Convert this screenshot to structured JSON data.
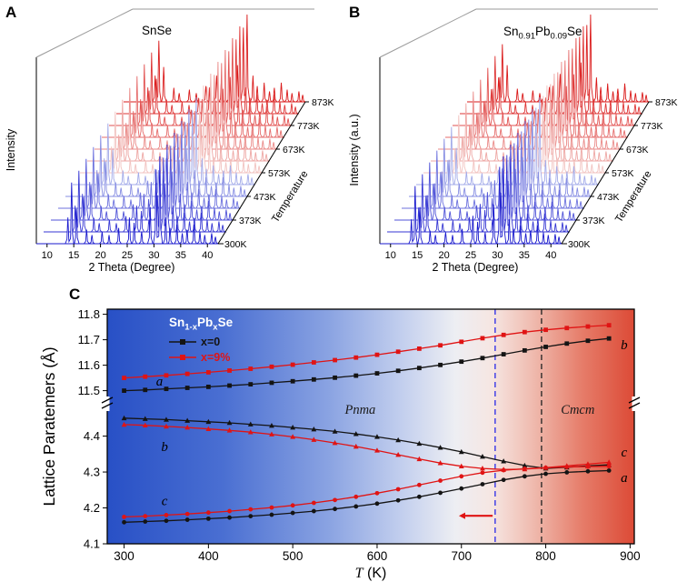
{
  "panel_letters": {
    "a": "A",
    "b": "B",
    "c": "C"
  },
  "chart_data": [
    {
      "id": "panel_A",
      "type": "line",
      "subtype": "waterfall_xrd",
      "title": "SnSe",
      "xlabel": "2 Theta (Degree)",
      "ylabel": "Intensity",
      "depth_label": "Temperature",
      "x_range": [
        8,
        42
      ],
      "x_ticks": [
        10,
        15,
        20,
        25,
        30,
        35,
        40
      ],
      "temperatures_K": [
        300,
        323,
        373,
        423,
        473,
        523,
        573,
        623,
        673,
        723,
        773,
        823,
        873
      ],
      "temp_tick_labels": [
        "300K",
        "373K",
        "473K",
        "573K",
        "673K",
        "773K",
        "873K"
      ],
      "temp_tick_indices": [
        0,
        2,
        4,
        6,
        8,
        10,
        12
      ],
      "color_stops": [
        "#1919cd",
        "#bec8ee",
        "#f2c3c0",
        "#da1919"
      ],
      "peaks_two_theta_intensity": [
        [
          13.9,
          0.3
        ],
        [
          14.6,
          0.7
        ],
        [
          15.5,
          0.4
        ],
        [
          17.4,
          0.16
        ],
        [
          18.4,
          0.1
        ],
        [
          20.3,
          0.14
        ],
        [
          21.6,
          0.1
        ],
        [
          23.4,
          0.18
        ],
        [
          25.4,
          0.3
        ],
        [
          26.3,
          0.24
        ],
        [
          27.7,
          0.14
        ],
        [
          29.3,
          0.42
        ],
        [
          30.4,
          0.85
        ],
        [
          31.1,
          1.0
        ],
        [
          32.2,
          0.3
        ],
        [
          33.0,
          0.18
        ],
        [
          34.3,
          0.22
        ],
        [
          35.3,
          0.12
        ],
        [
          36.2,
          0.16
        ],
        [
          37.5,
          0.22
        ],
        [
          38.6,
          0.14
        ],
        [
          39.5,
          0.1
        ],
        [
          40.8,
          0.12
        ],
        [
          41.5,
          0.08
        ]
      ]
    },
    {
      "id": "panel_B",
      "type": "line",
      "subtype": "waterfall_xrd",
      "title": "Sn0.91Pb0.09Se",
      "title_parts": [
        "Sn",
        "0.91",
        "Pb",
        "0.09",
        "Se"
      ],
      "xlabel": "2 Theta (Degree)",
      "ylabel": "Intensity (a.u.)",
      "depth_label": "Temperature",
      "x_range": [
        8,
        42
      ],
      "x_ticks": [
        10,
        15,
        20,
        25,
        30,
        35,
        40
      ],
      "temperatures_K": [
        300,
        323,
        373,
        423,
        473,
        523,
        573,
        623,
        673,
        723,
        773,
        823,
        873
      ],
      "temp_tick_labels": [
        "300K",
        "373K",
        "473K",
        "573K",
        "673K",
        "773K",
        "873K"
      ],
      "temp_tick_indices": [
        0,
        2,
        4,
        6,
        8,
        10,
        12
      ],
      "color_stops": [
        "#1919cd",
        "#bec8ee",
        "#f2c3c0",
        "#da1919"
      ],
      "peaks_two_theta_intensity": [
        [
          13.9,
          0.28
        ],
        [
          14.6,
          0.66
        ],
        [
          15.5,
          0.42
        ],
        [
          17.4,
          0.15
        ],
        [
          18.4,
          0.1
        ],
        [
          20.3,
          0.13
        ],
        [
          21.6,
          0.1
        ],
        [
          23.4,
          0.17
        ],
        [
          25.4,
          0.32
        ],
        [
          26.3,
          0.25
        ],
        [
          27.7,
          0.13
        ],
        [
          29.3,
          0.45
        ],
        [
          30.4,
          0.88
        ],
        [
          31.1,
          1.0
        ],
        [
          32.2,
          0.28
        ],
        [
          33.0,
          0.17
        ],
        [
          34.3,
          0.21
        ],
        [
          35.3,
          0.12
        ],
        [
          36.2,
          0.15
        ],
        [
          37.5,
          0.21
        ],
        [
          38.6,
          0.13
        ],
        [
          39.5,
          0.1
        ],
        [
          40.8,
          0.11
        ],
        [
          41.5,
          0.08
        ]
      ]
    },
    {
      "id": "panel_C",
      "type": "line",
      "xlabel": "T (K)",
      "xlabel_parts": {
        "italic": "T",
        "rest": " (K)"
      },
      "ylabel": "Lattice Paratemers (Å)",
      "x_range": [
        280,
        905
      ],
      "x_ticks": [
        300,
        400,
        500,
        600,
        700,
        800,
        900
      ],
      "y_axis_break": {
        "lower_range": [
          4.1,
          4.48
        ],
        "upper_range": [
          11.47,
          11.82
        ],
        "lower_ticks": [
          4.1,
          4.2,
          4.3,
          4.4
        ],
        "upper_ticks": [
          11.5,
          11.6,
          11.7,
          11.8
        ]
      },
      "temperatures_K": [
        300,
        325,
        350,
        375,
        400,
        425,
        450,
        475,
        500,
        525,
        550,
        575,
        600,
        625,
        650,
        675,
        700,
        725,
        750,
        775,
        800,
        825,
        850,
        875
      ],
      "series": [
        {
          "name": "a-axis x=0",
          "segment": "upper",
          "color": "#141414",
          "marker": "square",
          "values": [
            11.5,
            11.503,
            11.507,
            11.511,
            11.515,
            11.52,
            11.525,
            11.531,
            11.537,
            11.544,
            11.551,
            11.559,
            11.568,
            11.578,
            11.589,
            11.601,
            11.614,
            11.628,
            11.643,
            11.658,
            11.672,
            11.685,
            11.696,
            11.705
          ]
        },
        {
          "name": "a-axis x=9%",
          "segment": "upper",
          "color": "#e01414",
          "marker": "square",
          "values": [
            11.55,
            11.555,
            11.56,
            11.566,
            11.572,
            11.579,
            11.586,
            11.594,
            11.602,
            11.611,
            11.62,
            11.63,
            11.641,
            11.653,
            11.665,
            11.678,
            11.692,
            11.706,
            11.719,
            11.73,
            11.739,
            11.746,
            11.752,
            11.757
          ]
        },
        {
          "name": "b-axis x=0",
          "segment": "lower",
          "color": "#141414",
          "marker": "triangle",
          "values": [
            4.45,
            4.448,
            4.446,
            4.443,
            4.44,
            4.437,
            4.433,
            4.429,
            4.424,
            4.419,
            4.413,
            4.406,
            4.398,
            4.389,
            4.379,
            4.368,
            4.356,
            4.343,
            4.33,
            4.318,
            4.31,
            4.313,
            4.317,
            4.32
          ]
        },
        {
          "name": "b-axis x=9%",
          "segment": "lower",
          "color": "#e01414",
          "marker": "triangle",
          "values": [
            4.432,
            4.43,
            4.427,
            4.424,
            4.42,
            4.416,
            4.411,
            4.405,
            4.398,
            4.39,
            4.381,
            4.371,
            4.36,
            4.348,
            4.336,
            4.325,
            4.316,
            4.31,
            4.307,
            4.308,
            4.312,
            4.317,
            4.322,
            4.327
          ]
        },
        {
          "name": "c-axis x=0",
          "segment": "lower",
          "color": "#141414",
          "marker": "circle",
          "values": [
            4.16,
            4.162,
            4.164,
            4.167,
            4.17,
            4.173,
            4.177,
            4.181,
            4.186,
            4.191,
            4.197,
            4.204,
            4.212,
            4.221,
            4.231,
            4.242,
            4.254,
            4.266,
            4.278,
            4.288,
            4.295,
            4.299,
            4.302,
            4.304
          ]
        },
        {
          "name": "c-axis x=9%",
          "segment": "lower",
          "color": "#e01414",
          "marker": "circle",
          "values": [
            4.175,
            4.177,
            4.18,
            4.183,
            4.187,
            4.191,
            4.196,
            4.201,
            4.207,
            4.214,
            4.222,
            4.231,
            4.241,
            4.252,
            4.264,
            4.276,
            4.288,
            4.298,
            4.305,
            4.309,
            4.312,
            4.314,
            4.315,
            4.316
          ]
        }
      ],
      "legend": {
        "title_parts": [
          "Sn",
          "1-x",
          "Pb",
          "x",
          "Se"
        ],
        "entries": [
          {
            "label": "x=0",
            "color": "#141414"
          },
          {
            "label": "x=9%",
            "color": "#e01414"
          }
        ]
      },
      "phase_labels": [
        {
          "text": "Pnma",
          "T": 580,
          "value": 4.462
        },
        {
          "text": "Cmcm",
          "T": 838,
          "value": 4.462
        }
      ],
      "curve_labels": [
        {
          "text": "a",
          "T": 342,
          "value": 11.535,
          "segment": "upper"
        },
        {
          "text": "b",
          "T": 348,
          "value": 4.368,
          "segment": "lower"
        },
        {
          "text": "c",
          "T": 348,
          "value": 4.218,
          "segment": "lower"
        },
        {
          "text": "b",
          "T": 893,
          "value": 11.677,
          "segment": "upper"
        },
        {
          "text": "c",
          "T": 893,
          "value": 4.353,
          "segment": "lower"
        },
        {
          "text": "a",
          "T": 893,
          "value": 4.282,
          "segment": "lower"
        }
      ],
      "dashed_lines": [
        {
          "T": 740,
          "color": "#2828e8",
          "name": "transition-line-x9"
        },
        {
          "T": 795,
          "color": "#202020",
          "name": "transition-line-x0"
        }
      ],
      "arrow": {
        "from_T": 737,
        "to_T": 697,
        "value": 4.178,
        "color": "#e01414",
        "direction": "left"
      },
      "background_gradient": {
        "left": "#2850c6",
        "middle": "#edeef3",
        "right": "#dc4a36"
      }
    }
  ]
}
